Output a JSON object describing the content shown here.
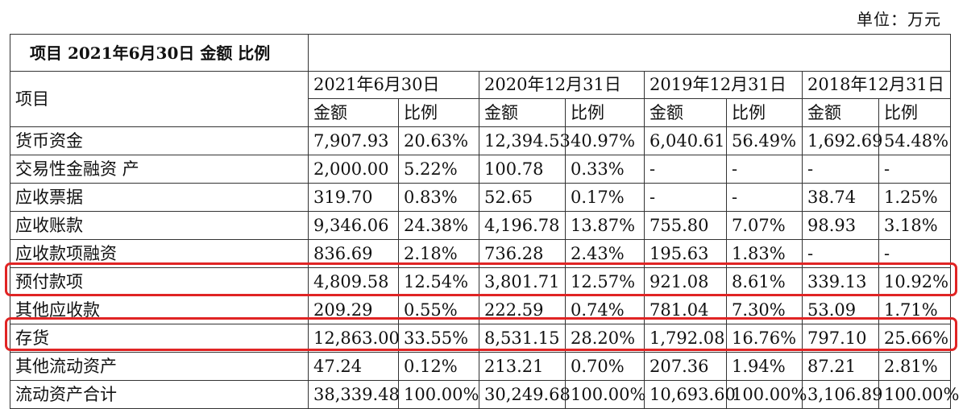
{
  "unit_label": "单位：万元",
  "table": {
    "title": "项目 2021年6月30日 金额 比例",
    "row_header": "项目",
    "periods": [
      "2021年6月30日",
      "2020年12月31日",
      "2019年12月31日",
      "2018年12月31日"
    ],
    "col_amount": "金额",
    "col_ratio": "比例",
    "rows": [
      {
        "name": "货币资金",
        "values": [
          "7,907.93",
          "20.63%",
          "12,394.53",
          "40.97%",
          "6,040.61",
          "56.49%",
          "1,692.69",
          "54.48%"
        ]
      },
      {
        "name": "交易性金融资 产",
        "values": [
          "2,000.00",
          "5.22%",
          "100.78",
          "0.33%",
          "-",
          "-",
          "-",
          "-"
        ]
      },
      {
        "name": "应收票据",
        "values": [
          "319.70",
          "0.83%",
          "52.65",
          "0.17%",
          "-",
          "-",
          "38.74",
          "1.25%"
        ]
      },
      {
        "name": "应收账款",
        "values": [
          "9,346.06",
          "24.38%",
          "4,196.78",
          "13.87%",
          "755.80",
          "7.07%",
          "98.93",
          "3.18%"
        ]
      },
      {
        "name": "应收款项融资",
        "values": [
          "836.69",
          "2.18%",
          "736.28",
          "2.43%",
          "195.63",
          "1.83%",
          "-",
          "-"
        ]
      },
      {
        "name": "预付款项",
        "values": [
          "4,809.58",
          "12.54%",
          "3,801.71",
          "12.57%",
          "921.08",
          "8.61%",
          "339.13",
          "10.92%"
        ]
      },
      {
        "name": "其他应收款",
        "values": [
          "209.29",
          "0.55%",
          "222.59",
          "0.74%",
          "781.04",
          "7.30%",
          "53.09",
          "1.71%"
        ]
      },
      {
        "name": "存货",
        "values": [
          "12,863.00",
          "33.55%",
          "8,531.15",
          "28.20%",
          "1,792.08",
          "16.76%",
          "797.10",
          "25.66%"
        ]
      },
      {
        "name": "其他流动资产",
        "values": [
          "47.24",
          "0.12%",
          "213.21",
          "0.70%",
          "207.36",
          "1.94%",
          "87.21",
          "2.81%"
        ]
      },
      {
        "name": "流动资产合计",
        "values": [
          "38,339.48",
          "100.00%",
          "30,249.68",
          "100.00%",
          "10,693.60",
          "100.00%",
          "3,106.89",
          "100.00%"
        ]
      }
    ]
  },
  "highlight_color": "#e02424"
}
